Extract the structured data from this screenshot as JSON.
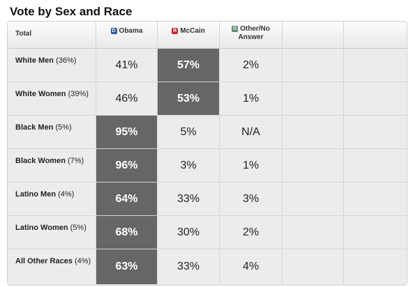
{
  "title": "Vote by Sex and Race",
  "header": {
    "total_label": "Total",
    "columns": [
      {
        "badge": "D",
        "label": "Obama",
        "color": "#2a5a9e"
      },
      {
        "badge": "R",
        "label": "McCain",
        "color": "#c0282d"
      },
      {
        "badge": "O",
        "label": "Other/No Answer",
        "color": "#5d8a6e"
      }
    ]
  },
  "winner_fill_color": "#666666",
  "rows": [
    {
      "name": "White Men",
      "share": "(36%)",
      "obama": "41%",
      "mccain": "57%",
      "other": "2%",
      "winner": "mccain"
    },
    {
      "name": "White Women",
      "share": "(39%)",
      "obama": "46%",
      "mccain": "53%",
      "other": "1%",
      "winner": "mccain"
    },
    {
      "name": "Black Men",
      "share": "(5%)",
      "obama": "95%",
      "mccain": "5%",
      "other": "N/A",
      "winner": "obama"
    },
    {
      "name": "Black Women",
      "share": "(7%)",
      "obama": "96%",
      "mccain": "3%",
      "other": "1%",
      "winner": "obama"
    },
    {
      "name": "Latino Men",
      "share": "(4%)",
      "obama": "64%",
      "mccain": "33%",
      "other": "3%",
      "winner": "obama"
    },
    {
      "name": "Latino Women",
      "share": "(5%)",
      "obama": "68%",
      "mccain": "30%",
      "other": "2%",
      "winner": "obama"
    },
    {
      "name": "All Other Races",
      "share": "(4%)",
      "obama": "63%",
      "mccain": "33%",
      "other": "4%",
      "winner": "obama"
    }
  ]
}
